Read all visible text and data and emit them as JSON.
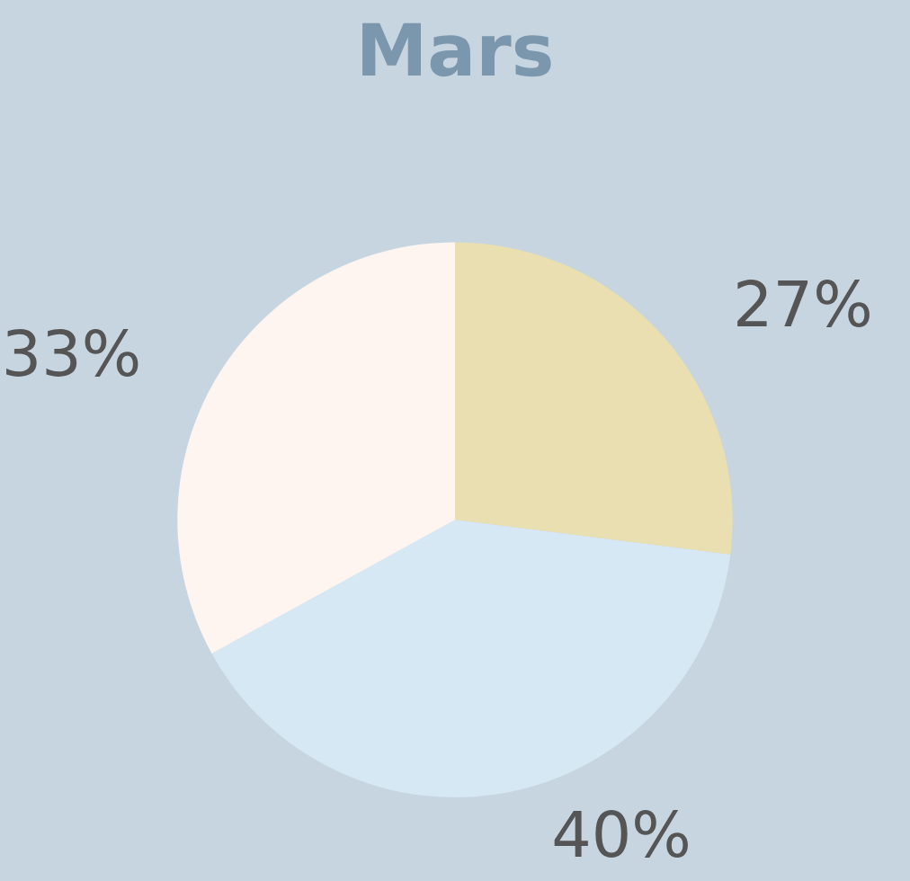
{
  "chart_data": {
    "type": "pie",
    "title": "Mars",
    "categories": [
      null,
      null,
      null
    ],
    "values": [
      27,
      40,
      33
    ],
    "colors": [
      "#e9dfb0",
      "#d7e8f5",
      "#fef5f0"
    ],
    "value_labels": [
      "27%",
      "40%",
      "33%"
    ]
  }
}
